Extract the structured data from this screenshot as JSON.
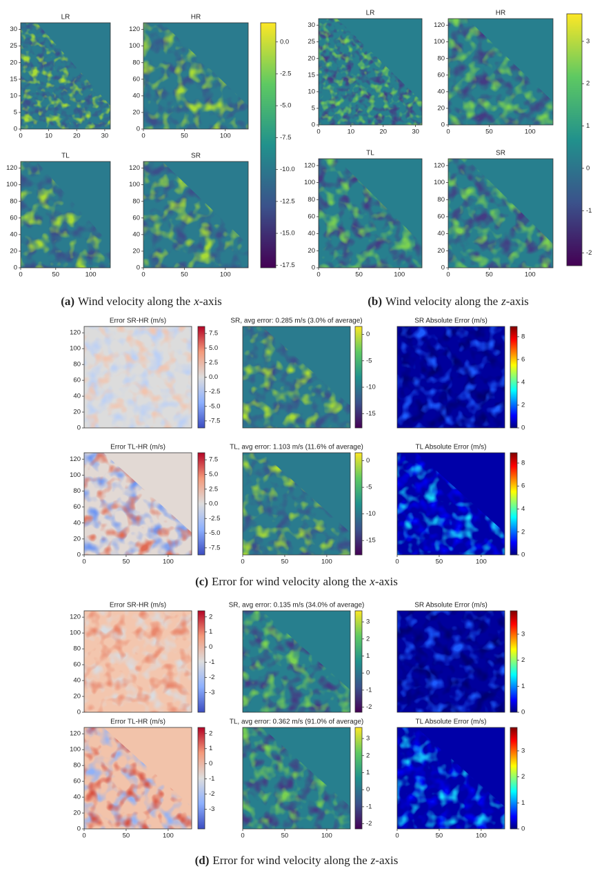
{
  "figure_a": {
    "panels": [
      {
        "title": "LR",
        "xlim": [
          0,
          32
        ],
        "ylim": [
          0,
          32
        ],
        "xticks": [
          0,
          10,
          20,
          30
        ],
        "yticks": [
          0,
          5,
          10,
          15,
          20,
          25,
          30
        ]
      },
      {
        "title": "HR",
        "xlim": [
          0,
          128
        ],
        "ylim": [
          0,
          128
        ],
        "xticks": [
          0,
          50,
          100
        ],
        "yticks": [
          0,
          20,
          40,
          60,
          80,
          100,
          120
        ]
      },
      {
        "title": "TL",
        "xlim": [
          0,
          128
        ],
        "ylim": [
          0,
          128
        ],
        "xticks": [
          0,
          50,
          100
        ],
        "yticks": [
          0,
          20,
          40,
          60,
          80,
          100,
          120
        ]
      },
      {
        "title": "SR",
        "xlim": [
          0,
          128
        ],
        "ylim": [
          0,
          128
        ],
        "xticks": [
          0,
          50,
          100
        ],
        "yticks": [
          0,
          20,
          40,
          60,
          80,
          100,
          120
        ]
      }
    ],
    "colorbar": {
      "lim": [
        -17.7,
        1.5
      ],
      "ticks": [
        {
          "value": 0,
          "label": "0.0"
        },
        -2.5,
        {
          "value": -5,
          "label": "-5.0"
        },
        -7.5,
        {
          "value": -10,
          "label": "-10.0"
        },
        -12.5,
        {
          "value": -15,
          "label": "-15.0"
        },
        -17.5
      ]
    },
    "caption": {
      "label": "(a)",
      "text": "Wind velocity along the",
      "variable": "x",
      "suffix": "-axis"
    }
  },
  "figure_b": {
    "panels": [
      {
        "title": "LR",
        "xlim": [
          0,
          32
        ],
        "ylim": [
          0,
          32
        ],
        "xticks": [
          0,
          10,
          20,
          30
        ],
        "yticks": [
          0,
          5,
          10,
          15,
          20,
          25,
          30
        ]
      },
      {
        "title": "HR",
        "xlim": [
          0,
          128
        ],
        "ylim": [
          0,
          128
        ],
        "xticks": [
          0,
          50,
          100
        ],
        "yticks": [
          0,
          20,
          40,
          60,
          80,
          100,
          120
        ]
      },
      {
        "title": "TL",
        "xlim": [
          0,
          128
        ],
        "ylim": [
          0,
          128
        ],
        "xticks": [
          0,
          50,
          100
        ],
        "yticks": [
          0,
          20,
          40,
          60,
          80,
          100,
          120
        ]
      },
      {
        "title": "SR",
        "xlim": [
          0,
          128
        ],
        "ylim": [
          0,
          128
        ],
        "xticks": [
          0,
          50,
          100
        ],
        "yticks": [
          0,
          20,
          40,
          60,
          80,
          100,
          120
        ]
      }
    ],
    "colorbar": {
      "lim": [
        -2.3,
        3.65
      ],
      "ticks": [
        3,
        2,
        1,
        0,
        -1,
        -2
      ]
    },
    "caption": {
      "label": "(b)",
      "text": "Wind velocity along the",
      "variable": "z",
      "suffix": "-axis"
    }
  },
  "figure_c": {
    "rows": [
      {
        "panels": [
          {
            "title": "Error SR-HR (m/s)",
            "ylim": [
              0,
              128
            ],
            "yticks": [
              0,
              20,
              40,
              60,
              80,
              100,
              120
            ]
          },
          {
            "title": "SR, avg error: 0.285 m/s (3.0% of average)"
          },
          {
            "title": "SR Absolute Error (m/s)"
          }
        ],
        "colorbars": [
          {
            "lim": [
              -8.7,
              8.7
            ],
            "ticks": [
              7.5,
              {
                "value": 5,
                "label": "5.0"
              },
              2.5,
              {
                "value": 0,
                "label": "0.0"
              },
              -2.5,
              {
                "value": -5,
                "label": "-5.0"
              },
              -7.5
            ]
          },
          {
            "lim": [
              -17.7,
              1.5
            ],
            "ticks": [
              0,
              -5,
              -10,
              -15
            ]
          },
          {
            "lim": [
              0,
              8.9
            ],
            "ticks": [
              0,
              2,
              4,
              6,
              8
            ]
          }
        ]
      },
      {
        "panels": [
          {
            "title": "Error TL-HR (m/s)",
            "xlim": [
              0,
              128
            ],
            "ylim": [
              0,
              128
            ],
            "xticks": [
              0,
              50,
              100
            ],
            "yticks": [
              0,
              20,
              40,
              60,
              80,
              100,
              120
            ]
          },
          {
            "title": "TL, avg error: 1.103 m/s (11.6% of average)",
            "xlim": [
              0,
              128
            ],
            "xticks": [
              0,
              50,
              100
            ]
          },
          {
            "title": "TL Absolute Error (m/s)",
            "xlim": [
              0,
              128
            ],
            "xticks": [
              0,
              50,
              100
            ]
          }
        ],
        "colorbars": [
          {
            "lim": [
              -8.7,
              8.7
            ],
            "ticks": [
              7.5,
              {
                "value": 5,
                "label": "5.0"
              },
              2.5,
              {
                "value": 0,
                "label": "0.0"
              },
              -2.5,
              {
                "value": -5,
                "label": "-5.0"
              },
              -7.5
            ]
          },
          {
            "lim": [
              -17.7,
              1.5
            ],
            "ticks": [
              0,
              -5,
              -10,
              -15
            ]
          },
          {
            "lim": [
              0,
              8.9
            ],
            "ticks": [
              0,
              2,
              4,
              6,
              8
            ]
          }
        ]
      }
    ],
    "caption": {
      "label": "(c)",
      "text": "Error for wind velocity along the",
      "variable": "x",
      "suffix": "-axis"
    }
  },
  "figure_d": {
    "rows": [
      {
        "panels": [
          {
            "title": "Error SR-HR (m/s)",
            "ylim": [
              0,
              128
            ],
            "yticks": [
              0,
              20,
              40,
              60,
              80,
              100,
              120
            ]
          },
          {
            "title": "SR, avg error: 0.135 m/s (34.0% of average)"
          },
          {
            "title": "SR Absolute Error (m/s)"
          }
        ],
        "colorbars": [
          {
            "lim": [
              -4.3,
              2.4
            ],
            "ticks": [
              2,
              1,
              0,
              -1,
              -2,
              -3
            ]
          },
          {
            "lim": [
              -2.3,
              3.65
            ],
            "ticks": [
              3,
              2,
              1,
              0,
              -1,
              -2
            ]
          },
          {
            "lim": [
              0,
              3.9
            ],
            "ticks": [
              0,
              1,
              2,
              3
            ]
          }
        ]
      },
      {
        "panels": [
          {
            "title": "Error TL-HR (m/s)",
            "xlim": [
              0,
              128
            ],
            "ylim": [
              0,
              128
            ],
            "xticks": [
              0,
              50,
              100
            ],
            "yticks": [
              0,
              20,
              40,
              60,
              80,
              100,
              120
            ]
          },
          {
            "title": "TL, avg error: 0.362 m/s (91.0% of average)",
            "xlim": [
              0,
              128
            ],
            "xticks": [
              0,
              50,
              100
            ]
          },
          {
            "title": "TL Absolute Error (m/s)",
            "xlim": [
              0,
              128
            ],
            "xticks": [
              0,
              50,
              100
            ]
          }
        ],
        "colorbars": [
          {
            "lim": [
              -4.3,
              2.4
            ],
            "ticks": [
              2,
              1,
              0,
              -1,
              -2,
              -3
            ]
          },
          {
            "lim": [
              -2.3,
              3.65
            ],
            "ticks": [
              3,
              2,
              1,
              0,
              -1,
              -2
            ]
          },
          {
            "lim": [
              0,
              3.9
            ],
            "ticks": [
              0,
              1,
              2,
              3
            ]
          }
        ]
      }
    ],
    "caption": {
      "label": "(d)",
      "text": "Error for wind velocity along the",
      "variable": "z",
      "suffix": "-axis"
    }
  }
}
